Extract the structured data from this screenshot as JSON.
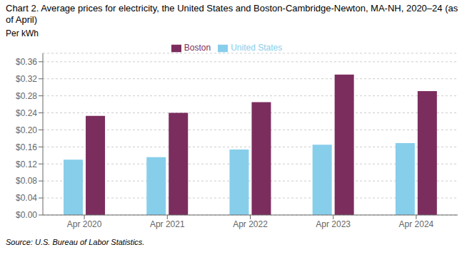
{
  "chart_data": {
    "type": "bar",
    "title": "Chart 2. Average prices for electricity, the United States and Boston-Cambridge-Newton, MA-NH, 2020–24 (as of April)",
    "ylabel": "Per kWh",
    "source": "Source: U.S. Bureau of Labor Statistics.",
    "categories": [
      "Apr 2020",
      "Apr 2021",
      "Apr 2022",
      "Apr 2023",
      "Apr 2024"
    ],
    "series": [
      {
        "name": "United States",
        "color": "#87CEEB",
        "values": [
          0.13,
          0.136,
          0.154,
          0.165,
          0.169
        ]
      },
      {
        "name": "Boston",
        "color": "#7B2D5E",
        "values": [
          0.233,
          0.24,
          0.265,
          0.33,
          0.291
        ]
      }
    ],
    "ylim": [
      0,
      0.38
    ],
    "yticks": [
      {
        "value": 0.0,
        "label": "$0.00"
      },
      {
        "value": 0.04,
        "label": "$0.04"
      },
      {
        "value": 0.08,
        "label": "$0.08"
      },
      {
        "value": 0.12,
        "label": "$0.12"
      },
      {
        "value": 0.16,
        "label": "$0.16"
      },
      {
        "value": 0.2,
        "label": "$0.20"
      },
      {
        "value": 0.24,
        "label": "$0.24"
      },
      {
        "value": 0.28,
        "label": "$0.28"
      },
      {
        "value": 0.32,
        "label": "$0.32"
      },
      {
        "value": 0.36,
        "label": "$0.36"
      }
    ],
    "grid": true,
    "legend": "top"
  }
}
